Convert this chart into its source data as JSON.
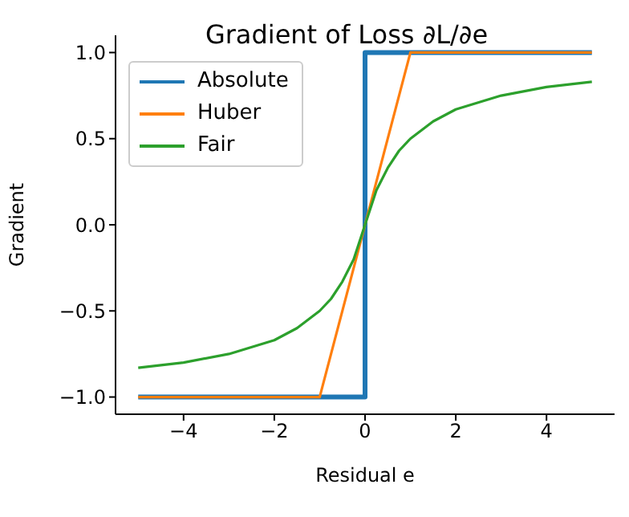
{
  "chart_data": {
    "type": "line",
    "title": "Gradient of Loss ∂L/∂e",
    "xlabel": "Residual e",
    "ylabel": "Gradient",
    "xlim": [
      -5.5,
      5.5
    ],
    "ylim": [
      -1.1,
      1.1
    ],
    "xticks": [
      {
        "value": -4,
        "label": "−4"
      },
      {
        "value": -2,
        "label": "−2"
      },
      0,
      2,
      4
    ],
    "yticks": [
      {
        "value": -1,
        "label": "−1.0"
      },
      {
        "value": -0.5,
        "label": "−0.5"
      },
      {
        "value": 0,
        "label": "0.0"
      },
      {
        "value": 0.5,
        "label": "0.5"
      },
      {
        "value": 1,
        "label": "1.0"
      }
    ],
    "grid": false,
    "legend": "top left",
    "marker": "none",
    "line_style": "solid",
    "series": [
      {
        "name": "Absolute",
        "color": "#1f77b4",
        "x": [
          -5,
          0,
          0,
          5
        ],
        "values": [
          -1,
          -1,
          1,
          1
        ]
      },
      {
        "name": "Huber",
        "color": "#ff7f0e",
        "x": [
          -5,
          -1,
          1,
          5
        ],
        "values": [
          -1,
          -1,
          1,
          1
        ]
      },
      {
        "name": "Fair",
        "color": "#2ca02c",
        "x": [
          -5,
          -4,
          -3,
          -2,
          -1.5,
          -1,
          -0.75,
          -0.5,
          -0.25,
          0,
          0.25,
          0.5,
          0.75,
          1,
          1.5,
          2,
          3,
          4,
          5
        ],
        "values": [
          -0.83,
          -0.8,
          -0.75,
          -0.67,
          -0.6,
          -0.5,
          -0.43,
          -0.33,
          -0.2,
          0,
          0.2,
          0.33,
          0.43,
          0.5,
          0.6,
          0.67,
          0.75,
          0.8,
          0.83
        ]
      }
    ]
  }
}
